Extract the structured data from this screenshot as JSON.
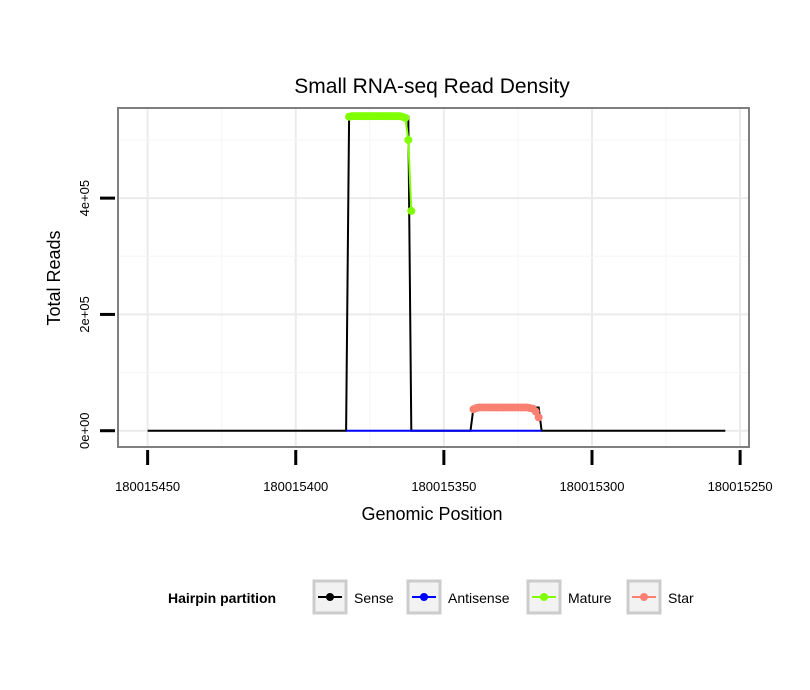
{
  "chart_data": {
    "type": "line",
    "title": "Small RNA-seq Read Density",
    "xlabel": "Genomic Position",
    "ylabel": "Total Reads",
    "x_reversed": true,
    "xlim": [
      180015460,
      180015247
    ],
    "ylim": [
      -28000,
      555000
    ],
    "x_ticks": [
      180015450,
      180015400,
      180015350,
      180015300,
      180015250
    ],
    "x_tick_labels": [
      "180015450",
      "180015400",
      "180015350",
      "180015300",
      "180015250"
    ],
    "y_ticks": [
      0,
      200000,
      400000
    ],
    "y_tick_labels": [
      "0e+00",
      "2e+05",
      "4e+05"
    ],
    "grid": true,
    "legend": {
      "title": "Hairpin partition",
      "position": "bottom",
      "entries": [
        {
          "name": "Sense",
          "color": "#000000"
        },
        {
          "name": "Antisense",
          "color": "#0000ff"
        },
        {
          "name": "Mature",
          "color": "#7fff00"
        },
        {
          "name": "Star",
          "color": "#fa8072"
        }
      ]
    },
    "series": [
      {
        "name": "Sense",
        "color": "#000000",
        "points": false,
        "x": [
          180015450,
          180015383,
          180015382,
          180015362,
          180015361,
          180015341,
          180015340,
          180015318,
          180015317,
          180015255
        ],
        "y": [
          0,
          0,
          540000,
          540000,
          0,
          0,
          40000,
          40000,
          0,
          0
        ]
      },
      {
        "name": "Antisense",
        "color": "#0000ff",
        "points": false,
        "x": [
          180015383,
          180015360,
          180015340,
          180015317
        ],
        "y": [
          0,
          0,
          0,
          0
        ]
      },
      {
        "name": "Mature",
        "color": "#7fff00",
        "points": true,
        "x": [
          180015382,
          180015381,
          180015380,
          180015379,
          180015378,
          180015377,
          180015376,
          180015375,
          180015374,
          180015373,
          180015372,
          180015371,
          180015370,
          180015369,
          180015368,
          180015367,
          180015366,
          180015365,
          180015364,
          180015363,
          180015362,
          180015361
        ],
        "y": [
          540000,
          541000,
          541000,
          541000,
          541000,
          541000,
          541000,
          541000,
          541000,
          541000,
          541000,
          541000,
          541000,
          541000,
          541000,
          541000,
          541000,
          541000,
          540000,
          538000,
          500000,
          378000
        ]
      },
      {
        "name": "Star",
        "color": "#fa8072",
        "points": true,
        "x": [
          180015340,
          180015339,
          180015338,
          180015337,
          180015336,
          180015335,
          180015334,
          180015333,
          180015332,
          180015331,
          180015330,
          180015329,
          180015328,
          180015327,
          180015326,
          180015325,
          180015324,
          180015323,
          180015322,
          180015321,
          180015320,
          180015319,
          180015318
        ],
        "y": [
          37000,
          39000,
          40000,
          40000,
          40000,
          40000,
          40000,
          40000,
          40000,
          40000,
          40000,
          40000,
          40000,
          40000,
          40000,
          40000,
          40000,
          40000,
          40000,
          39000,
          38000,
          33000,
          23000
        ]
      }
    ]
  }
}
